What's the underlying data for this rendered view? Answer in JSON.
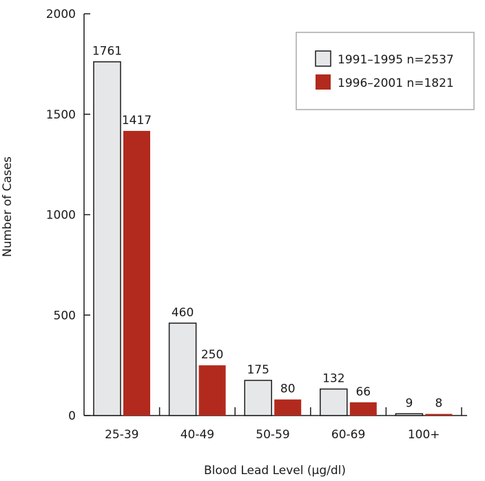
{
  "chart_data": {
    "type": "bar",
    "categories": [
      "25-39",
      "40-49",
      "50-59",
      "60-69",
      "100+"
    ],
    "series": [
      {
        "name": "1991–1995 n=2537",
        "values": [
          1761,
          460,
          175,
          132,
          9
        ],
        "color": "#e6e7e9",
        "data_labels": [
          "1761",
          "460",
          "175",
          "132",
          "9"
        ]
      },
      {
        "name": "1996–2001 n=1821",
        "values": [
          1417,
          250,
          80,
          66,
          8
        ],
        "color": "#b22a1e",
        "data_labels": [
          "1417",
          "250",
          "80",
          "66",
          "8"
        ]
      }
    ],
    "title": "",
    "xlabel": "Blood Lead Level (µg/dl)",
    "ylabel": "Number of Cases",
    "ylim": [
      0,
      2000
    ],
    "yticks": [
      0,
      500,
      1000,
      1500,
      2000
    ],
    "ytick_labels": [
      "0",
      "500",
      "1000",
      "1500",
      "2000"
    ],
    "grid": false,
    "legend_position": "top-right"
  }
}
